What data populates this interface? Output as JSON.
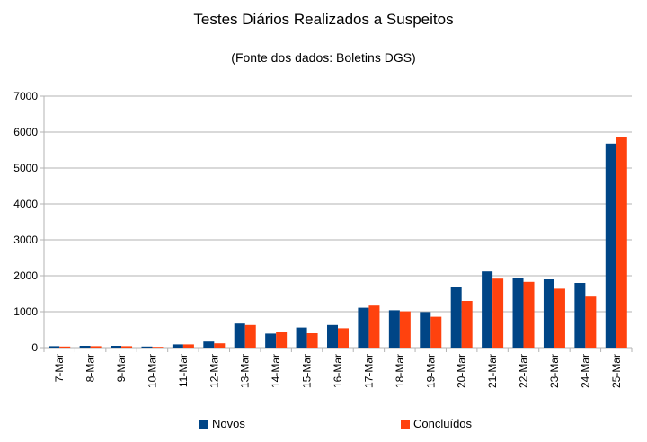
{
  "chart_data": {
    "type": "bar",
    "title": "Testes Diários Realizados a Suspeitos",
    "subtitle": "(Fonte dos dados: Boletins DGS)",
    "categories": [
      "7-Mar",
      "8-Mar",
      "9-Mar",
      "10-Mar",
      "11-Mar",
      "12-Mar",
      "13-Mar",
      "14-Mar",
      "15-Mar",
      "16-Mar",
      "17-Mar",
      "18-Mar",
      "19-Mar",
      "20-Mar",
      "21-Mar",
      "22-Mar",
      "23-Mar",
      "24-Mar",
      "25-Mar"
    ],
    "series": [
      {
        "name": "Novos",
        "color": "#004586",
        "values": [
          40,
          50,
          50,
          30,
          90,
          170,
          670,
          390,
          560,
          630,
          1110,
          1040,
          990,
          1680,
          2120,
          1930,
          1900,
          1800,
          5680
        ]
      },
      {
        "name": "Concluídos",
        "color": "#ff420e",
        "values": [
          30,
          40,
          40,
          20,
          90,
          120,
          630,
          440,
          400,
          540,
          1170,
          1010,
          860,
          1300,
          1920,
          1830,
          1640,
          1420,
          5870
        ]
      }
    ],
    "ylim": [
      0,
      7000
    ],
    "yticks": [
      0,
      1000,
      2000,
      3000,
      4000,
      5000,
      6000,
      7000
    ],
    "grid": true,
    "legend_position": "bottom"
  }
}
